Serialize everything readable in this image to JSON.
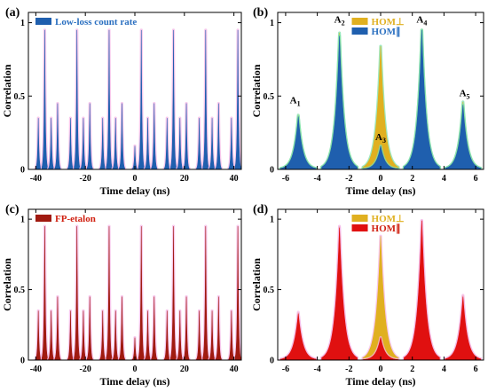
{
  "colors": {
    "blue": "#1f5fae",
    "blue_text": "#2a6fc0",
    "red": "#e01010",
    "dark_red": "#a01a10",
    "red_text": "#d02010",
    "gold": "#e0b020",
    "pink_halo": "#f4b6e6",
    "green_halo": "#7fe0a8"
  },
  "chart_data": [
    {
      "panel": "(a)",
      "type": "area",
      "legend": [
        "Low-loss count rate"
      ],
      "legend_position": "top-left",
      "xlabel": "Time delay (ns)",
      "ylabel": "Correlation",
      "xlim": [
        -43,
        43
      ],
      "ylim": [
        0,
        1.07
      ],
      "xticks": [
        -40,
        -20,
        0,
        20,
        40
      ],
      "yticks": [
        0,
        0.5,
        1
      ],
      "ytick_labels": [
        "0",
        "0.5",
        "1"
      ],
      "grid": false,
      "peak_width": 0.28,
      "series": [
        {
          "name": "Low-loss count rate",
          "color": "#1f5fae",
          "peaks": [
            [
              -39.0,
              0.35
            ],
            [
              -36.4,
              0.95
            ],
            [
              -33.8,
              0.35
            ],
            [
              -31.2,
              0.45
            ],
            [
              -26.0,
              0.35
            ],
            [
              -23.4,
              0.95
            ],
            [
              -20.8,
              0.35
            ],
            [
              -18.2,
              0.45
            ],
            [
              -13.0,
              0.35
            ],
            [
              -10.4,
              0.95
            ],
            [
              -7.8,
              0.35
            ],
            [
              -5.2,
              0.45
            ],
            [
              0.0,
              0.16
            ],
            [
              2.6,
              0.95
            ],
            [
              5.2,
              0.35
            ],
            [
              7.8,
              0.45
            ],
            [
              13.0,
              0.35
            ],
            [
              15.6,
              0.95
            ],
            [
              18.2,
              0.35
            ],
            [
              20.8,
              0.45
            ],
            [
              26.0,
              0.35
            ],
            [
              28.6,
              0.95
            ],
            [
              31.2,
              0.35
            ],
            [
              33.8,
              0.45
            ],
            [
              39.0,
              0.35
            ],
            [
              41.6,
              0.95
            ]
          ]
        }
      ]
    },
    {
      "panel": "(b)",
      "type": "area",
      "legend": [
        "HOM⊥",
        "HOM∥"
      ],
      "legend_position": "top-center",
      "xlabel": "Time delay (ns)",
      "ylabel": "Correlation",
      "xlim": [
        -6.5,
        6.5
      ],
      "ylim": [
        0,
        1.07
      ],
      "xticks": [
        -6,
        -4,
        -2,
        0,
        2,
        4,
        6
      ],
      "yticks": [
        0,
        0.5,
        1
      ],
      "ytick_labels": [
        "0",
        "0.5",
        "1"
      ],
      "grid": false,
      "peak_width": 0.28,
      "series": [
        {
          "name": "HOM⊥",
          "color": "#e0b020",
          "peaks": [
            [
              -5.2,
              0.37
            ],
            [
              -2.6,
              0.93
            ],
            [
              0.0,
              0.84
            ],
            [
              2.6,
              0.95
            ],
            [
              5.2,
              0.46
            ]
          ]
        },
        {
          "name": "HOM∥",
          "color": "#1f5fae",
          "peaks": [
            [
              -5.2,
              0.36
            ],
            [
              -2.6,
              0.91
            ],
            [
              0.0,
              0.16
            ],
            [
              2.6,
              0.95
            ],
            [
              5.2,
              0.44
            ]
          ]
        }
      ],
      "annotations": [
        {
          "main": "A",
          "sub": "1",
          "x": -5.4,
          "y": 0.45
        },
        {
          "main": "A",
          "sub": "2",
          "x": -2.6,
          "y": 1.0
        },
        {
          "main": "A",
          "sub": "3",
          "x": 0.0,
          "y": 0.2
        },
        {
          "main": "A",
          "sub": "4",
          "x": 2.6,
          "y": 1.0
        },
        {
          "main": "A",
          "sub": "5",
          "x": 5.3,
          "y": 0.5
        }
      ]
    },
    {
      "panel": "(c)",
      "type": "area",
      "legend": [
        "FP-etalon"
      ],
      "legend_position": "top-left",
      "xlabel": "Time delay (ns)",
      "ylabel": "Correlation",
      "xlim": [
        -43,
        43
      ],
      "ylim": [
        0,
        1.07
      ],
      "xticks": [
        -40,
        -20,
        0,
        20,
        40
      ],
      "yticks": [
        0,
        0.5,
        1
      ],
      "ytick_labels": [
        "0",
        "0.5",
        "1"
      ],
      "grid": false,
      "peak_width": 0.28,
      "series": [
        {
          "name": "FP-etalon",
          "color": "#a01a10",
          "peaks": [
            [
              -39.0,
              0.35
            ],
            [
              -36.4,
              0.95
            ],
            [
              -33.8,
              0.35
            ],
            [
              -31.2,
              0.45
            ],
            [
              -26.0,
              0.35
            ],
            [
              -23.4,
              0.95
            ],
            [
              -20.8,
              0.35
            ],
            [
              -18.2,
              0.45
            ],
            [
              -13.0,
              0.35
            ],
            [
              -10.4,
              0.95
            ],
            [
              -7.8,
              0.35
            ],
            [
              -5.2,
              0.45
            ],
            [
              0.0,
              0.16
            ],
            [
              2.6,
              0.95
            ],
            [
              5.2,
              0.35
            ],
            [
              7.8,
              0.45
            ],
            [
              13.0,
              0.35
            ],
            [
              15.6,
              0.95
            ],
            [
              18.2,
              0.35
            ],
            [
              20.8,
              0.45
            ],
            [
              26.0,
              0.35
            ],
            [
              28.6,
              0.95
            ],
            [
              31.2,
              0.35
            ],
            [
              33.8,
              0.45
            ],
            [
              39.0,
              0.35
            ],
            [
              41.6,
              0.95
            ]
          ]
        }
      ]
    },
    {
      "panel": "(d)",
      "type": "area",
      "legend": [
        "HOM⊥",
        "HOM∥"
      ],
      "legend_position": "top-center",
      "xlabel": "Time delay (ns)",
      "ylabel": "Correlation",
      "xlim": [
        -6.5,
        6.5
      ],
      "ylim": [
        0,
        1.07
      ],
      "xticks": [
        -6,
        -4,
        -2,
        0,
        2,
        4,
        6
      ],
      "yticks": [
        0,
        0.5,
        1
      ],
      "ytick_labels": [
        "0",
        "0.5",
        "1"
      ],
      "grid": false,
      "peak_width": 0.28,
      "series": [
        {
          "name": "HOM⊥",
          "color": "#e0b020",
          "peaks": [
            [
              -5.2,
              0.34
            ],
            [
              -2.6,
              0.95
            ],
            [
              0.0,
              0.88
            ],
            [
              2.6,
              0.99
            ],
            [
              5.2,
              0.46
            ]
          ]
        },
        {
          "name": "HOM∥",
          "color": "#e01010",
          "peaks": [
            [
              -5.2,
              0.33
            ],
            [
              -2.6,
              0.94
            ],
            [
              0.0,
              0.16
            ],
            [
              2.6,
              0.99
            ],
            [
              5.2,
              0.45
            ]
          ]
        }
      ]
    }
  ]
}
